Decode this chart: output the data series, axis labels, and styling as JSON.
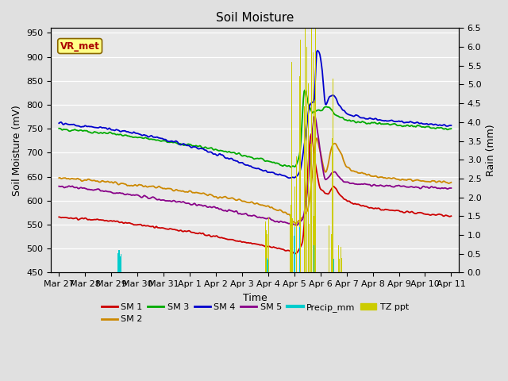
{
  "title": "Soil Moisture",
  "xlabel": "Time",
  "ylabel_left": "Soil Moisture (mV)",
  "ylabel_right": "Rain (mm)",
  "ylim_left": [
    450,
    960
  ],
  "ylim_right": [
    0.0,
    6.5
  ],
  "yticks_left": [
    450,
    500,
    550,
    600,
    650,
    700,
    750,
    800,
    850,
    900,
    950
  ],
  "yticks_right": [
    0.0,
    0.5,
    1.0,
    1.5,
    2.0,
    2.5,
    3.0,
    3.5,
    4.0,
    4.5,
    5.0,
    5.5,
    6.0,
    6.5
  ],
  "background_color": "#e0e0e0",
  "plot_bg_color": "#e8e8e8",
  "vr_met_label": "VR_met",
  "vr_met_color": "#aa0000",
  "vr_met_bg": "#ffff88",
  "line_colors": {
    "SM 1": "#cc0000",
    "SM 2": "#cc8800",
    "SM 3": "#00aa00",
    "SM 4": "#0000cc",
    "SM 5": "#880088",
    "Precip_mm": "#00cccc",
    "TZ ppt": "#cccc00"
  },
  "xtick_labels": [
    "Mar 27",
    "Mar 28",
    "Mar 29",
    "Mar 30",
    "Mar 31",
    "Apr 1",
    "Apr 2",
    "Apr 3",
    "Apr 4",
    "Apr 5",
    "Apr 6",
    "Apr 7",
    "Apr 8",
    "Apr 9",
    "Apr 10",
    "Apr 11"
  ],
  "xtick_positions": [
    0,
    1,
    2,
    3,
    4,
    5,
    6,
    7,
    8,
    9,
    10,
    11,
    12,
    13,
    14,
    15
  ]
}
